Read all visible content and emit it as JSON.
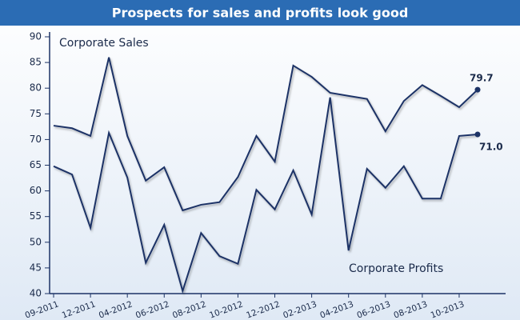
{
  "chart_data": {
    "type": "line",
    "title": "Prospects for sales and profits look good",
    "categories": [
      "09-2011",
      null,
      "12-2011",
      null,
      "04-2012",
      null,
      "06-2012",
      null,
      "08-2012",
      null,
      "10-2012",
      null,
      "12-2012",
      null,
      "02-2013",
      null,
      "04-2013",
      null,
      "06-2013",
      null,
      "08-2013",
      null,
      "10-2013",
      null
    ],
    "series": [
      {
        "name": "Corporate Sales",
        "color": "#1c3366",
        "values": [
          72.7,
          72.2,
          70.7,
          86,
          70.7,
          62,
          64.6,
          56.2,
          57.3,
          57.8,
          62.7,
          70.7,
          65.7,
          84.4,
          82.2,
          79.1,
          78.5,
          77.9,
          71.6,
          77.5,
          80.6,
          78.5,
          76.3,
          79.7
        ],
        "value_labels": [
          null,
          null,
          null,
          null,
          null,
          null,
          null,
          null,
          null,
          null,
          null,
          null,
          null,
          null,
          null,
          null,
          null,
          null,
          null,
          null,
          null,
          null,
          null,
          "79.7"
        ]
      },
      {
        "name": "Corporate Profits",
        "color": "#1c3366",
        "values": [
          64.8,
          63.2,
          52.8,
          71.3,
          62.6,
          46,
          53.4,
          40.5,
          51.8,
          47.3,
          45.8,
          60.2,
          56.4,
          64,
          55.4,
          78.2,
          48.4,
          64.3,
          60.6,
          64.8,
          58.5,
          58.5,
          70.7,
          71
        ],
        "value_labels": [
          null,
          null,
          null,
          null,
          null,
          null,
          null,
          null,
          null,
          null,
          null,
          null,
          null,
          null,
          null,
          null,
          null,
          null,
          null,
          null,
          null,
          null,
          null,
          "71.0"
        ]
      }
    ],
    "ylim": [
      40,
      90
    ],
    "yticks": [
      40,
      45,
      50,
      55,
      60,
      65,
      70,
      75,
      80,
      85,
      90
    ],
    "grid": false
  }
}
